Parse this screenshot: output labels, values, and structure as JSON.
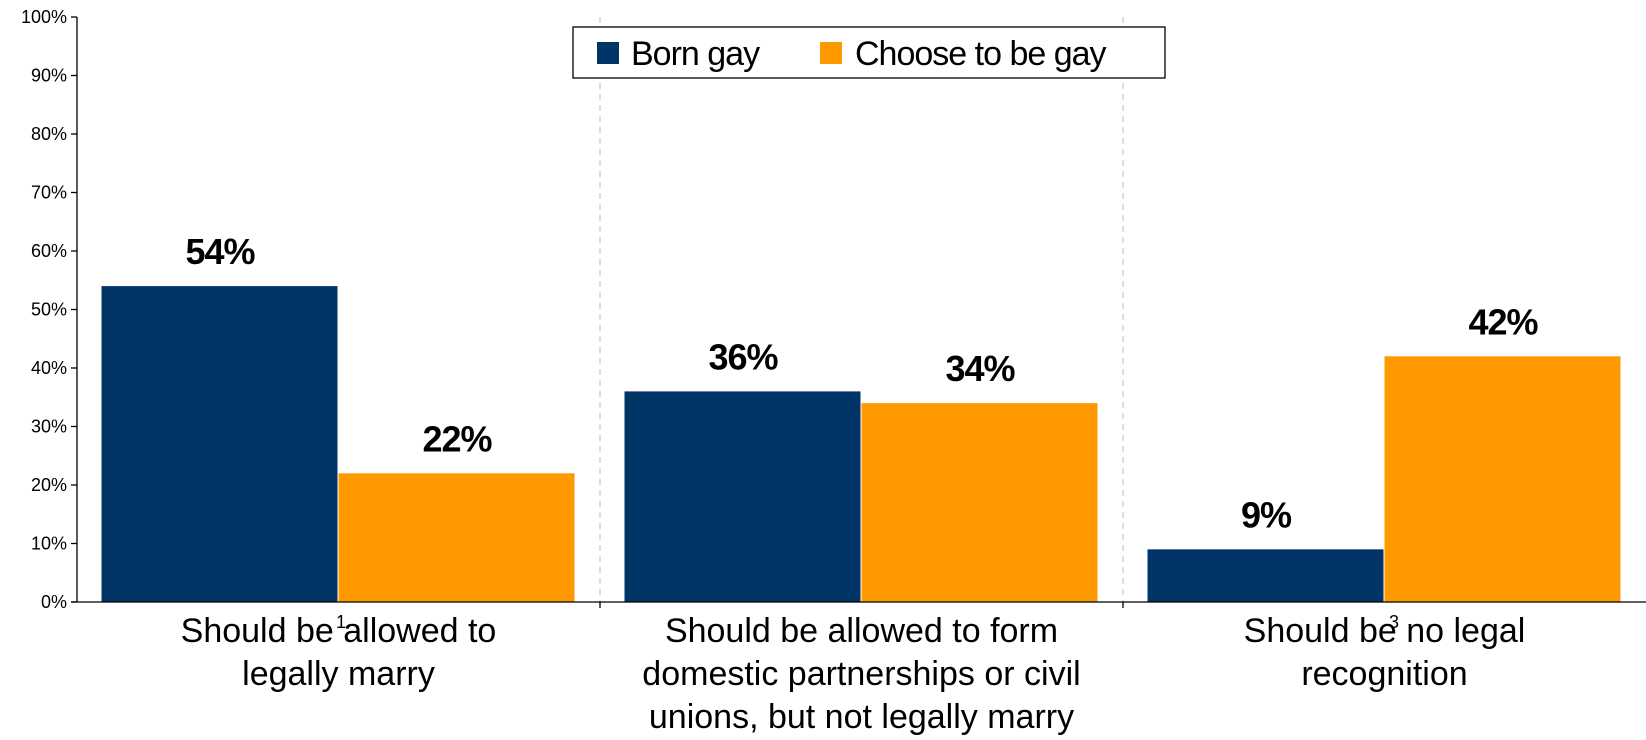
{
  "chart_data": {
    "type": "bar",
    "categories": [
      [
        "Should be allowed to",
        "legally marry"
      ],
      [
        "Should be allowed to form",
        "domestic partnerships or civil",
        "unions, but not legally marry"
      ],
      [
        "Should be no legal",
        "recognition"
      ]
    ],
    "series": [
      {
        "name": "Born gay",
        "color": "#003366",
        "values": [
          54,
          36,
          9
        ],
        "labels": [
          "54%",
          "36%",
          "9%"
        ]
      },
      {
        "name": "Choose to be gay",
        "color": "#FF9900",
        "values": [
          22,
          34,
          42
        ],
        "labels": [
          "22%",
          "34%",
          "42%"
        ]
      }
    ],
    "ylim": [
      0,
      100
    ],
    "yticks": [
      "0%",
      "10%",
      "20%",
      "30%",
      "40%",
      "50%",
      "60%",
      "70%",
      "80%",
      "90%",
      "100%"
    ],
    "legend_position": "top-center",
    "category_dividers": "dashed",
    "grid": false,
    "footnote_marks": [
      "1",
      "3"
    ]
  }
}
